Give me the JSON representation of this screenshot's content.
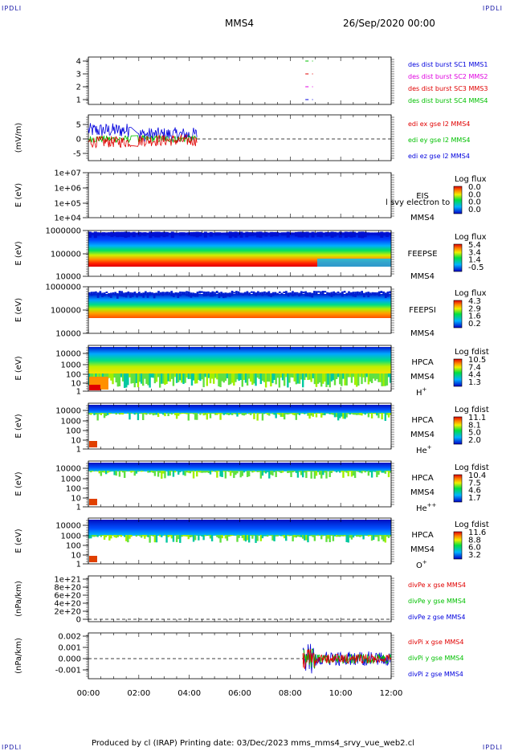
{
  "corner_label": "IPDLI",
  "header": {
    "spacecraft": "MMS4",
    "datetime": "26/Sep/2020 00:00"
  },
  "footer": "Produced by cl (IRAP)   Printing date: 03/Dec/2023   mms_mms4_srvy_vue_web2.cl",
  "colors": {
    "red": "#e00000",
    "green": "#00c000",
    "blue": "#0000dd",
    "magenta": "#e000e0"
  },
  "chart_data": [
    {
      "id": "burst",
      "type": "line",
      "yticks": [
        "4",
        "3",
        "2",
        "1"
      ],
      "legend": [
        "des dist burst SC1 MMS1",
        "des dist burst SC2 MMS2",
        "des dist burst SC3 MMS3",
        "des dist burst SC4 MMS4"
      ],
      "legend_colors": [
        "#0000dd",
        "#e000e0",
        "#e00000",
        "#00c000"
      ],
      "segments_hours": [
        [
          8.6,
          8.9
        ]
      ]
    },
    {
      "id": "edi",
      "type": "line",
      "ylabel": "(mV/m)",
      "yticks": [
        "5",
        "0",
        "-5"
      ],
      "legend": [
        "edi ex gse l2 MMS4",
        "edi ey gse l2 MMS4",
        "edi ez gse l2 MMS4"
      ],
      "legend_colors": [
        "#e00000",
        "#00c000",
        "#0000dd"
      ],
      "data_range_hours": [
        0,
        4.3
      ]
    },
    {
      "id": "eis",
      "type": "heatmap",
      "ylabel": "E (eV)",
      "yticks": [
        "1e+07",
        "1e+06",
        "1e+05",
        "1e+04"
      ],
      "side_labels": [
        "EIS",
        "MMS4"
      ],
      "overlay": "l svy electron to",
      "cbar_title": "Log flux",
      "cbar_ticks": [
        "0.0",
        "0.0",
        "0.0",
        "0.0"
      ]
    },
    {
      "id": "feepse",
      "type": "heatmap",
      "ylabel": "E (eV)",
      "yticks": [
        "1000000",
        "100000",
        "10000"
      ],
      "side_labels": [
        "FEEPSE",
        "MMS4"
      ],
      "cbar_title": "Log flux",
      "cbar_ticks": [
        "5.4",
        "3.4",
        "1.4",
        "-0.5"
      ]
    },
    {
      "id": "feepsi",
      "type": "heatmap",
      "ylabel": "E (eV)",
      "yticks": [
        "1000000",
        "100000",
        "10000"
      ],
      "side_labels": [
        "FEEPSI",
        "MMS4"
      ],
      "cbar_title": "Log flux",
      "cbar_ticks": [
        "4.3",
        "2.9",
        "1.6",
        "0.2"
      ]
    },
    {
      "id": "hpca_h",
      "type": "heatmap",
      "ylabel": "E (eV)",
      "yticks": [
        "10000",
        "1000",
        "100",
        "10",
        "1"
      ],
      "side_labels": [
        "HPCA",
        "MMS4"
      ],
      "species": "H",
      "charge": "+",
      "cbar_title": "Log fdist",
      "cbar_ticks": [
        "10.5",
        "7.4",
        "4.4",
        "1.3"
      ]
    },
    {
      "id": "hpca_he",
      "type": "heatmap",
      "ylabel": "E (eV)",
      "yticks": [
        "10000",
        "1000",
        "100",
        "10",
        "1"
      ],
      "side_labels": [
        "HPCA",
        "MMS4"
      ],
      "species": "He",
      "charge": "+",
      "cbar_title": "Log fdist",
      "cbar_ticks": [
        "11.1",
        "8.1",
        "5.0",
        "2.0"
      ]
    },
    {
      "id": "hpca_he2",
      "type": "heatmap",
      "ylabel": "E (eV)",
      "yticks": [
        "10000",
        "1000",
        "100",
        "10",
        "1"
      ],
      "side_labels": [
        "HPCA",
        "MMS4"
      ],
      "species": "He",
      "charge": "++",
      "cbar_title": "Log fdist",
      "cbar_ticks": [
        "10.4",
        "7.5",
        "4.6",
        "1.7"
      ]
    },
    {
      "id": "hpca_o",
      "type": "heatmap",
      "ylabel": "E (eV)",
      "yticks": [
        "10000",
        "1000",
        "100",
        "10",
        "1"
      ],
      "side_labels": [
        "HPCA",
        "MMS4"
      ],
      "species": "O",
      "charge": "+",
      "cbar_title": "Log fdist",
      "cbar_ticks": [
        "11.6",
        "8.8",
        "6.0",
        "3.2"
      ]
    },
    {
      "id": "divpe",
      "type": "line",
      "ylabel": "(nPa/km)",
      "yticks": [
        "1e+21",
        "8e+20",
        "6e+20",
        "4e+20",
        "2e+20",
        "0"
      ],
      "legend": [
        "divPe x gse MMS4",
        "divPe y gse MMS4",
        "divPe z gse MMS4"
      ],
      "legend_colors": [
        "#e00000",
        "#00c000",
        "#0000dd"
      ]
    },
    {
      "id": "divpi",
      "type": "line",
      "ylabel": "(nPa/km)",
      "yticks": [
        "0.002",
        "0.001",
        "0.000",
        "-0.001"
      ],
      "legend": [
        "divPi x gse MMS4",
        "divPi y gse MMS4",
        "divPi z gse MMS4"
      ],
      "legend_colors": [
        "#e00000",
        "#00c000",
        "#0000dd"
      ],
      "data_range_hours": [
        8.5,
        12
      ]
    }
  ],
  "xaxis": {
    "ticks": [
      "00:00",
      "02:00",
      "04:00",
      "06:00",
      "08:00",
      "10:00",
      "12:00"
    ],
    "range_hours": [
      0,
      12
    ]
  }
}
